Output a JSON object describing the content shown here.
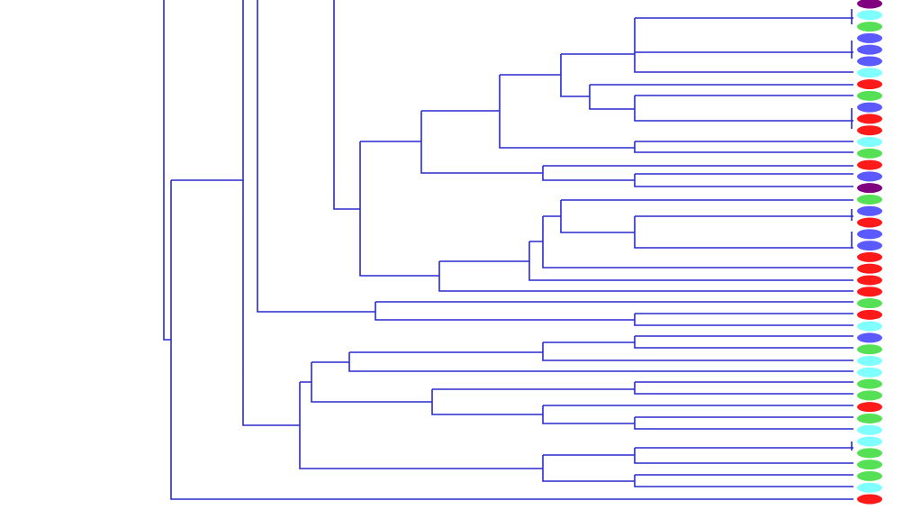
{
  "leaves": [
    {
      "color": "#800080"
    },
    {
      "color": "#80ffff"
    },
    {
      "color": "#55e055"
    },
    {
      "color": "#5a5aff"
    },
    {
      "color": "#5a5aff"
    },
    {
      "color": "#5a5aff"
    },
    {
      "color": "#80ffff"
    },
    {
      "color": "#ff1a1a"
    },
    {
      "color": "#55e055"
    },
    {
      "color": "#5a5aff"
    },
    {
      "color": "#ff1a1a"
    },
    {
      "color": "#ff1a1a"
    },
    {
      "color": "#80ffff"
    },
    {
      "color": "#55e055"
    },
    {
      "color": "#ff1a1a"
    },
    {
      "color": "#5a5aff"
    },
    {
      "color": "#800080"
    },
    {
      "color": "#55e055"
    },
    {
      "color": "#5a5aff"
    },
    {
      "color": "#ff1a1a"
    },
    {
      "color": "#5a5aff"
    },
    {
      "color": "#5a5aff"
    },
    {
      "color": "#ff1a1a"
    },
    {
      "color": "#ff1a1a"
    },
    {
      "color": "#ff1a1a"
    },
    {
      "color": "#ff1a1a"
    },
    {
      "color": "#55e055"
    },
    {
      "color": "#ff1a1a"
    },
    {
      "color": "#80ffff"
    },
    {
      "color": "#5a5aff"
    },
    {
      "color": "#55e055"
    },
    {
      "color": "#80ffff"
    },
    {
      "color": "#80ffff"
    },
    {
      "color": "#55e055"
    },
    {
      "color": "#55e055"
    },
    {
      "color": "#ff1a1a"
    },
    {
      "color": "#55e055"
    },
    {
      "color": "#80ffff"
    },
    {
      "color": "#80ffff"
    },
    {
      "color": "#55e055"
    },
    {
      "color": "#55e055"
    },
    {
      "color": "#55e055"
    },
    {
      "color": "#80ffff"
    },
    {
      "color": "#ff1a1a"
    }
  ]
}
